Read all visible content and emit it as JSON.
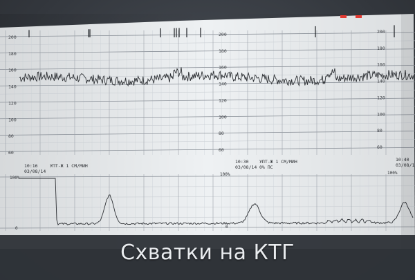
{
  "caption": "Схватки на КТГ",
  "colors": {
    "paper": "#eef1f3",
    "grid_major": "#8a9098",
    "grid_minor": "#c3c8ce",
    "trace": "#2c2f33",
    "marker": "#e23a32"
  },
  "fhr": {
    "scale_left": [
      "200",
      "180",
      "160",
      "140",
      "120",
      "100",
      "80",
      "60"
    ],
    "scale_mid": [
      "200",
      "180",
      "160",
      "140",
      "120",
      "100",
      "80",
      "60"
    ],
    "scale_right": [
      "200",
      "180",
      "160",
      "140",
      "120",
      "100",
      "80",
      "60"
    ]
  },
  "toco": {
    "top_label": "100%",
    "zero_label": "0"
  },
  "annotations": [
    {
      "time": "10:16",
      "date": "03/08/14",
      "text": "УПТ-Ж 1 СМ/МИН"
    },
    {
      "time": "10:30",
      "date": "03/08/14",
      "text": "УПТ-Ж 1 СМ/МИН",
      "extra": "0% ПС"
    },
    {
      "time": "10:40",
      "date": "03/08/1"
    }
  ]
}
